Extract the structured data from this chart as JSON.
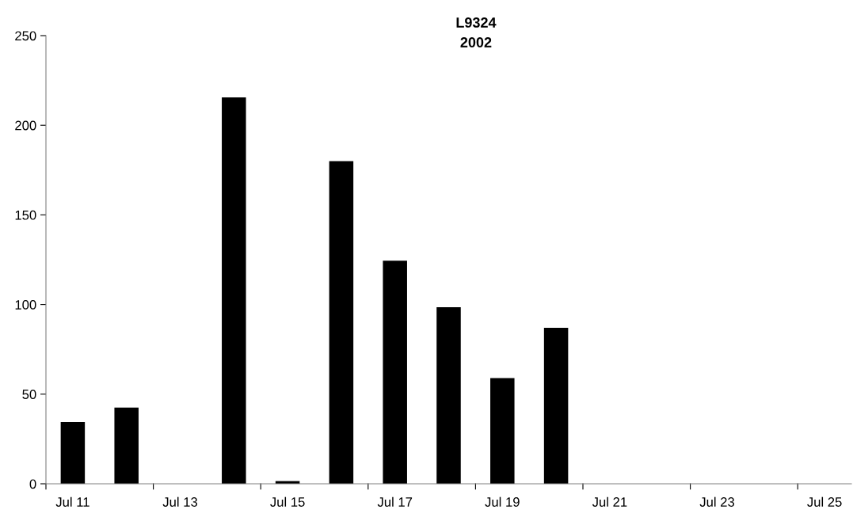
{
  "chart_data": {
    "type": "bar",
    "title": "L9324",
    "subtitle": "2002",
    "categories": [
      "Jul 11",
      null,
      "Jul 13",
      null,
      "Jul 15",
      null,
      "Jul 17",
      null,
      "Jul 19",
      null,
      "Jul 21",
      null,
      "Jul 23",
      null,
      "Jul 25"
    ],
    "values": [
      34.5,
      42.5,
      null,
      215.5,
      1.5,
      180,
      124.5,
      98.5,
      59,
      87,
      null,
      null,
      null,
      null,
      null
    ],
    "color": "#000000",
    "ylim": [
      0,
      250
    ],
    "yticks": [
      0,
      50,
      100,
      150,
      200,
      250
    ],
    "grid": false,
    "legend": false
  }
}
